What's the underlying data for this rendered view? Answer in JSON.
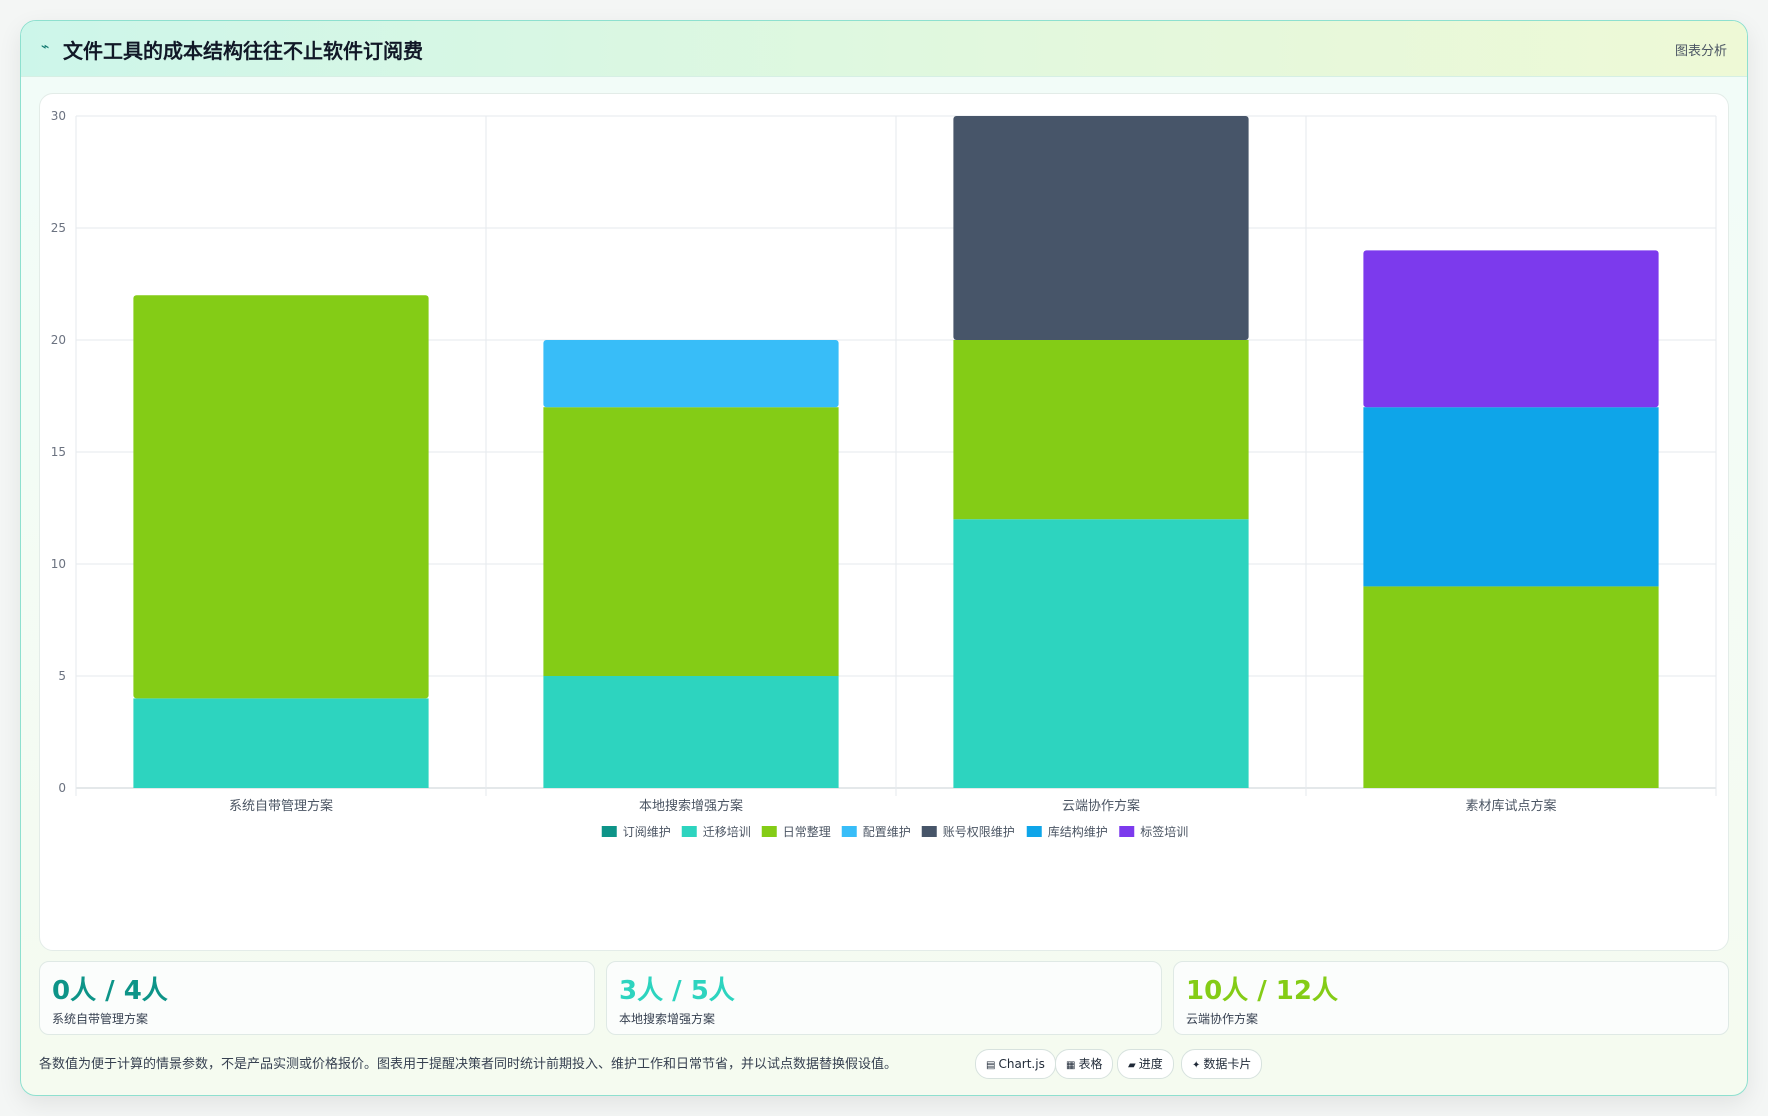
{
  "header": {
    "title": "文件工具的成本结构往往不止软件订阅费",
    "icon": "trend-icon",
    "link_label": "图表分析"
  },
  "chart_data": {
    "type": "bar",
    "stacked": true,
    "categories": [
      "系统自带管理方案",
      "本地搜索增强方案",
      "云端协作方案",
      "素材库试点方案"
    ],
    "series": [
      {
        "name": "订阅维护",
        "color": "#0d9488",
        "values": [
          0,
          0,
          0,
          0
        ]
      },
      {
        "name": "迁移培训",
        "color": "#2dd4bf",
        "values": [
          4,
          5,
          12,
          0
        ]
      },
      {
        "name": "日常整理",
        "color": "#84cc16",
        "values": [
          18,
          12,
          8,
          9
        ]
      },
      {
        "name": "配置维护",
        "color": "#38bdf8",
        "values": [
          0,
          3,
          0,
          0
        ]
      },
      {
        "name": "账号权限维护",
        "color": "#475569",
        "values": [
          0,
          0,
          10,
          0
        ]
      },
      {
        "name": "库结构维护",
        "color": "#0ea5e9",
        "values": [
          0,
          0,
          0,
          8
        ]
      },
      {
        "name": "标签培训",
        "color": "#7c3aed",
        "values": [
          0,
          0,
          0,
          7
        ]
      }
    ],
    "ylim": [
      0,
      30
    ],
    "yticks": [
      0,
      5,
      10,
      15,
      20,
      25,
      30
    ],
    "grid": true,
    "legend_position": "bottom"
  },
  "stats": [
    {
      "value": "0人 / 4人",
      "label": "系统自带管理方案",
      "color": "#0d9488"
    },
    {
      "value": "3人 / 5人",
      "label": "本地搜索增强方案",
      "color": "#2dd4bf"
    },
    {
      "value": "10人 / 12人",
      "label": "云端协作方案",
      "color": "#84cc16"
    }
  ],
  "footnote": "各数值为便于计算的情景参数，不是产品实测或价格报价。图表用于提醒决策者同时统计前期投入、维护工作和日常节省，并以试点数据替换假设值。",
  "chips": [
    {
      "icon": "chart-icon",
      "glyph": "▤",
      "label": "Chart.js"
    },
    {
      "icon": "table-icon",
      "glyph": "▦",
      "label": "表格"
    },
    {
      "icon": "progress-icon",
      "glyph": "▰",
      "label": "进度"
    },
    {
      "icon": "card-icon",
      "glyph": "✦",
      "label": "数据卡片"
    }
  ]
}
